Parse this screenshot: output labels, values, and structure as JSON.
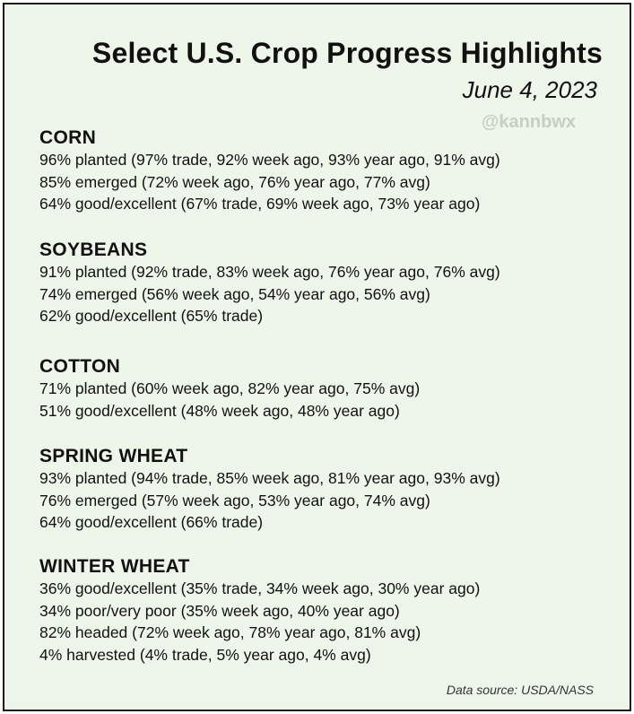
{
  "header": {
    "title": "Select U.S. Crop Progress Highlights",
    "date": "June 4, 2023",
    "handle": "@kannbwx"
  },
  "sections": [
    {
      "name": "CORN",
      "lines": [
        "96% planted (97% trade, 92% week ago, 93% year ago, 91% avg)",
        "85% emerged (72% week ago, 76% year ago, 77% avg)",
        "64% good/excellent (67% trade, 69% week ago, 73% year ago)"
      ]
    },
    {
      "name": "SOYBEANS",
      "lines": [
        "91% planted (92% trade, 83% week ago, 76% year ago, 76% avg)",
        "74% emerged (56% week ago, 54% year ago, 56% avg)",
        "62% good/excellent (65% trade)"
      ]
    },
    {
      "name": "COTTON",
      "lines": [
        "71% planted (60% week ago, 82% year ago, 75% avg)",
        "51% good/excellent (48% week ago, 48% year ago)"
      ]
    },
    {
      "name": "SPRING WHEAT",
      "lines": [
        "93% planted (94% trade, 85% week ago, 81% year ago, 93% avg)",
        "76% emerged (57% week ago, 53% year ago, 74% avg)",
        "64% good/excellent (66% trade)"
      ]
    },
    {
      "name": "WINTER WHEAT",
      "lines": [
        "36% good/excellent (35% trade, 34% week ago, 30% year ago)",
        "34% poor/very poor (35% week ago, 40% year ago)",
        "82% headed (72% week ago, 78% year ago, 81% avg)",
        "4% harvested (4% trade, 5% year ago, 4% avg)"
      ]
    }
  ],
  "footer": {
    "source": "Data source: USDA/NASS"
  }
}
